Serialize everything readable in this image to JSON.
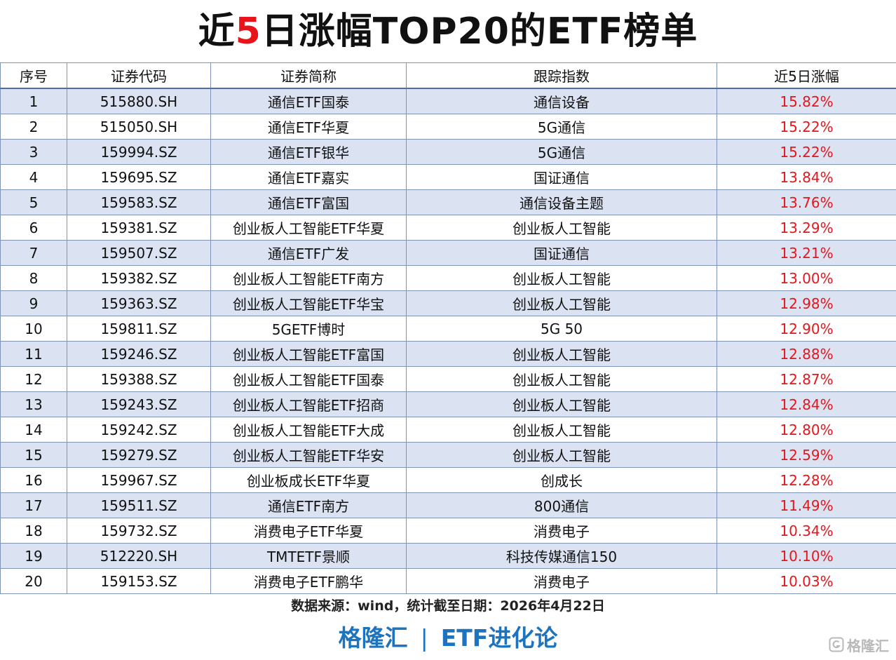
{
  "title": {
    "pre": "近",
    "accent": "5",
    "post": "日涨幅TOP20的ETF榜单"
  },
  "colors": {
    "accent_red": "#e8141b",
    "brand_blue": "#1e73be",
    "row_band": "#dbe3f2"
  },
  "table": {
    "headers": [
      "序号",
      "证券代码",
      "证券简称",
      "跟踪指数",
      "近5日涨幅"
    ],
    "rows": [
      [
        "1",
        "515880.SH",
        "通信ETF国泰",
        "通信设备",
        "15.82%"
      ],
      [
        "2",
        "515050.SH",
        "通信ETF华夏",
        "5G通信",
        "15.22%"
      ],
      [
        "3",
        "159994.SZ",
        "通信ETF银华",
        "5G通信",
        "15.22%"
      ],
      [
        "4",
        "159695.SZ",
        "通信ETF嘉实",
        "国证通信",
        "13.84%"
      ],
      [
        "5",
        "159583.SZ",
        "通信ETF富国",
        "通信设备主题",
        "13.76%"
      ],
      [
        "6",
        "159381.SZ",
        "创业板人工智能ETF华夏",
        "创业板人工智能",
        "13.29%"
      ],
      [
        "7",
        "159507.SZ",
        "通信ETF广发",
        "国证通信",
        "13.21%"
      ],
      [
        "8",
        "159382.SZ",
        "创业板人工智能ETF南方",
        "创业板人工智能",
        "13.00%"
      ],
      [
        "9",
        "159363.SZ",
        "创业板人工智能ETF华宝",
        "创业板人工智能",
        "12.98%"
      ],
      [
        "10",
        "159811.SZ",
        "5GETF博时",
        "5G 50",
        "12.90%"
      ],
      [
        "11",
        "159246.SZ",
        "创业板人工智能ETF富国",
        "创业板人工智能",
        "12.88%"
      ],
      [
        "12",
        "159388.SZ",
        "创业板人工智能ETF国泰",
        "创业板人工智能",
        "12.87%"
      ],
      [
        "13",
        "159243.SZ",
        "创业板人工智能ETF招商",
        "创业板人工智能",
        "12.84%"
      ],
      [
        "14",
        "159242.SZ",
        "创业板人工智能ETF大成",
        "创业板人工智能",
        "12.80%"
      ],
      [
        "15",
        "159279.SZ",
        "创业板人工智能ETF华安",
        "创业板人工智能",
        "12.59%"
      ],
      [
        "16",
        "159967.SZ",
        "创业板成长ETF华夏",
        "创成长",
        "12.28%"
      ],
      [
        "17",
        "159511.SZ",
        "通信ETF南方",
        "800通信",
        "11.49%"
      ],
      [
        "18",
        "159732.SZ",
        "消费电子ETF华夏",
        "消费电子",
        "10.34%"
      ],
      [
        "19",
        "512220.SH",
        "TMTETF景顺",
        "科技传媒通信150",
        "10.10%"
      ],
      [
        "20",
        "159153.SZ",
        "消费电子ETF鹏华",
        "消费电子",
        "10.03%"
      ]
    ]
  },
  "source_note": "数据来源：wind，统计截至日期：2026年4月22日",
  "brand": {
    "left": "格隆汇",
    "separator": "|",
    "right": "ETF进化论"
  },
  "watermark": {
    "icon": "gelonghui-logo-icon",
    "text": "格隆汇"
  }
}
